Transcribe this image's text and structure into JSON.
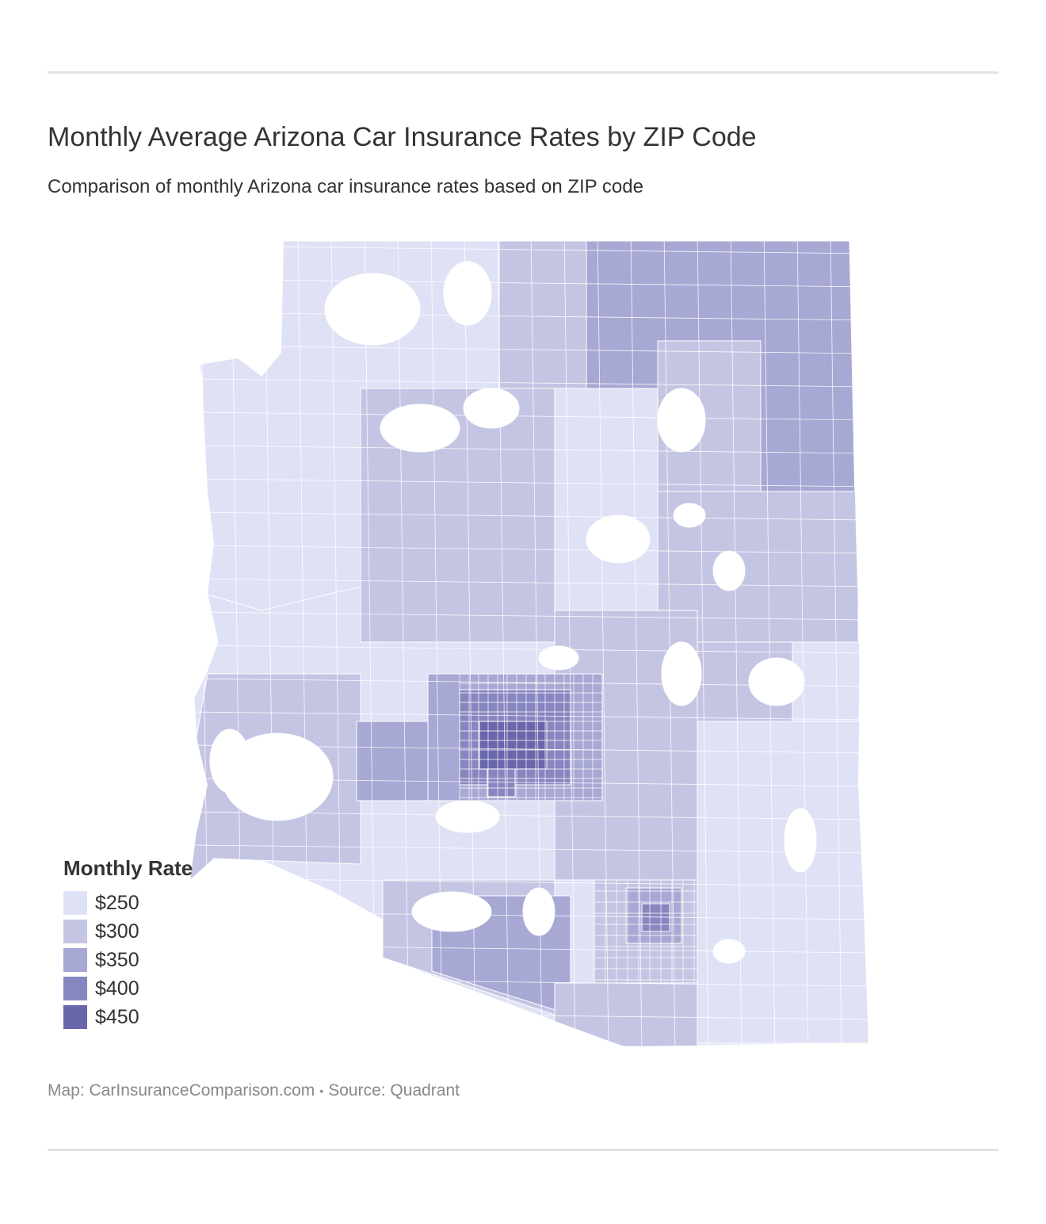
{
  "header": {
    "title": "Monthly Average Arizona Car Insurance Rates by ZIP Code",
    "subtitle": "Comparison of monthly Arizona car insurance rates based on ZIP code"
  },
  "legend": {
    "title": "Monthly Rate",
    "items": [
      {
        "label": "$250",
        "color": "#dfe2f5"
      },
      {
        "label": "$300",
        "color": "#c4c5e3"
      },
      {
        "label": "$350",
        "color": "#a7a8d3"
      },
      {
        "label": "$400",
        "color": "#8886c0"
      },
      {
        "label": "$450",
        "color": "#6a66ab"
      }
    ]
  },
  "map": {
    "region": "Arizona",
    "no_data_color": "#ffffff",
    "border_color": "#ffffff"
  },
  "footer": {
    "map_credit": "Map: CarInsuranceComparison.com",
    "separator": "•",
    "source": "Source: Quadrant"
  }
}
